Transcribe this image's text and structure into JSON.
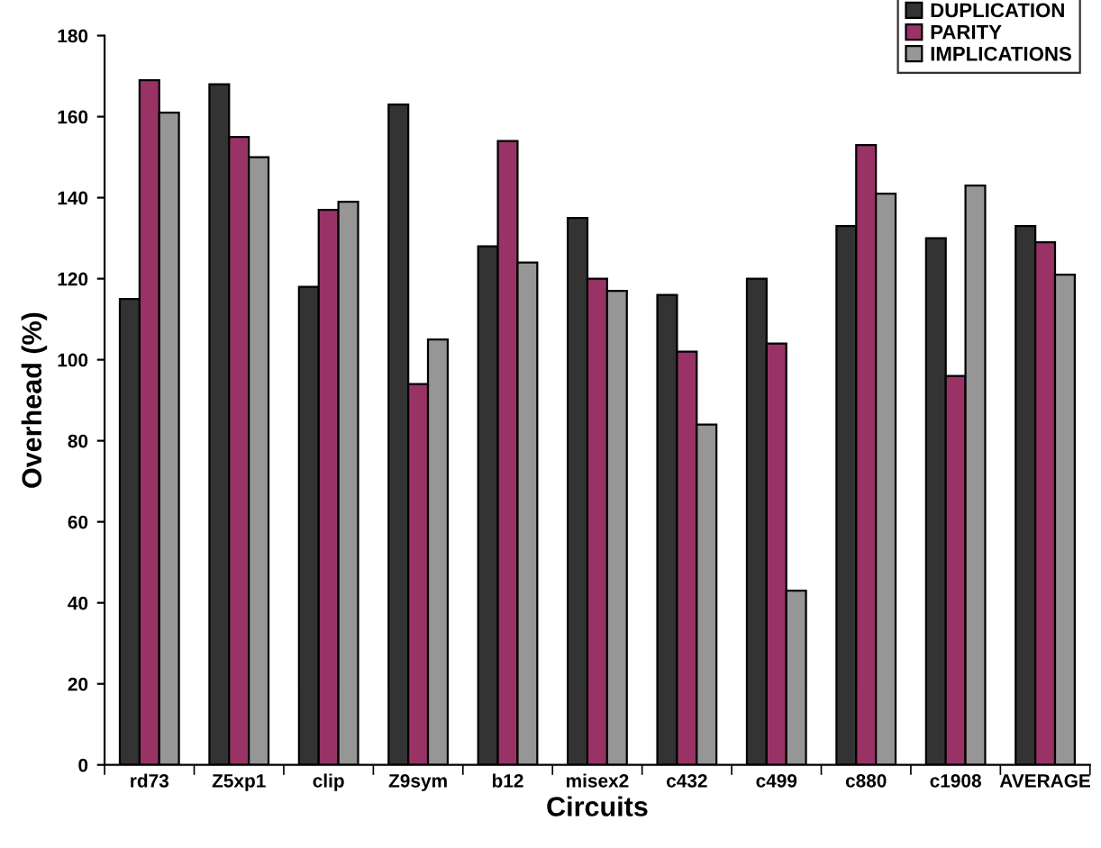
{
  "chart_data": {
    "type": "bar",
    "xlabel": "Circuits",
    "ylabel": "Overhead (%)",
    "categories": [
      "rd73",
      "Z5xp1",
      "clip",
      "Z9sym",
      "b12",
      "misex2",
      "c432",
      "c499",
      "c880",
      "c1908",
      "AVERAGE"
    ],
    "series": [
      {
        "name": "DUPLICATION",
        "color": "#333333",
        "values": [
          115,
          168,
          118,
          163,
          128,
          135,
          116,
          120,
          133,
          130,
          133
        ]
      },
      {
        "name": "PARITY",
        "color": "#993366",
        "values": [
          169,
          155,
          137,
          94,
          154,
          120,
          102,
          104,
          153,
          96,
          129
        ]
      },
      {
        "name": "IMPLICATIONS",
        "color": "#969696",
        "values": [
          161,
          150,
          139,
          105,
          124,
          117,
          84,
          43,
          141,
          143,
          121
        ]
      }
    ],
    "ylim": [
      0,
      180
    ],
    "yticks": [
      0,
      20,
      40,
      60,
      80,
      100,
      120,
      140,
      160,
      180
    ],
    "grid": false,
    "legend": "top right"
  }
}
